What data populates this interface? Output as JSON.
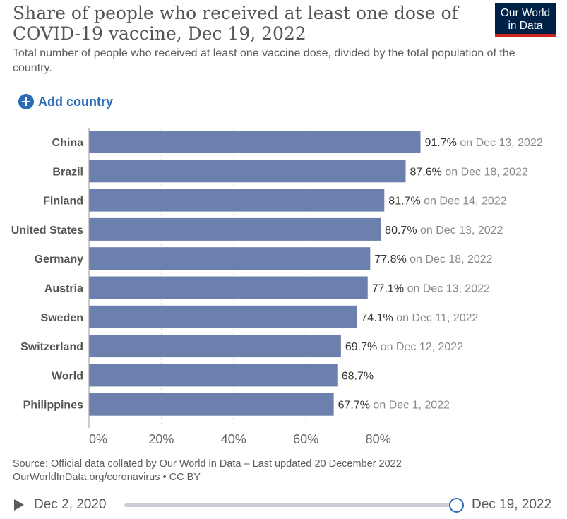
{
  "header": {
    "title": "Share of people who received at least one dose of COVID-19 vaccine, Dec 19, 2022",
    "subtitle": "Total number of people who received at least one vaccine dose, divided by the total population of the country.",
    "logo_line1": "Our World",
    "logo_line2": "in Data"
  },
  "controls": {
    "add_country": "Add country"
  },
  "chart_data": {
    "type": "bar",
    "orientation": "horizontal",
    "categories": [
      "China",
      "Brazil",
      "Finland",
      "United States",
      "Germany",
      "Austria",
      "Sweden",
      "Switzerland",
      "World",
      "Philippines"
    ],
    "values": [
      91.7,
      87.6,
      81.7,
      80.7,
      77.8,
      77.1,
      74.1,
      69.7,
      68.7,
      67.7
    ],
    "value_labels": [
      "91.7%",
      "87.6%",
      "81.7%",
      "80.7%",
      "77.8%",
      "77.1%",
      "74.1%",
      "69.7%",
      "68.7%",
      "67.7%"
    ],
    "date_labels": [
      "on Dec 13, 2022",
      "on Dec 18, 2022",
      "on Dec 14, 2022",
      "on Dec 13, 2022",
      "on Dec 18, 2022",
      "on Dec 13, 2022",
      "on Dec 11, 2022",
      "on Dec 12, 2022",
      "",
      "on Dec 1, 2022"
    ],
    "xlim": [
      0,
      100
    ],
    "xticks": [
      0,
      20,
      40,
      60,
      80
    ],
    "xtick_labels": [
      "0%",
      "20%",
      "40%",
      "60%",
      "80%"
    ],
    "grid": true,
    "bar_color": "#6b80ad"
  },
  "footer": {
    "source": "Source: Official data collated by Our World in Data – Last updated 20 December 2022",
    "url_license": "OurWorldInData.org/coronavirus • CC BY"
  },
  "timeline": {
    "start": "Dec 2, 2020",
    "end": "Dec 19, 2022"
  },
  "colors": {
    "accent": "#2c6bb6",
    "logo_bg": "#002147",
    "logo_stripe": "#ce261e"
  }
}
